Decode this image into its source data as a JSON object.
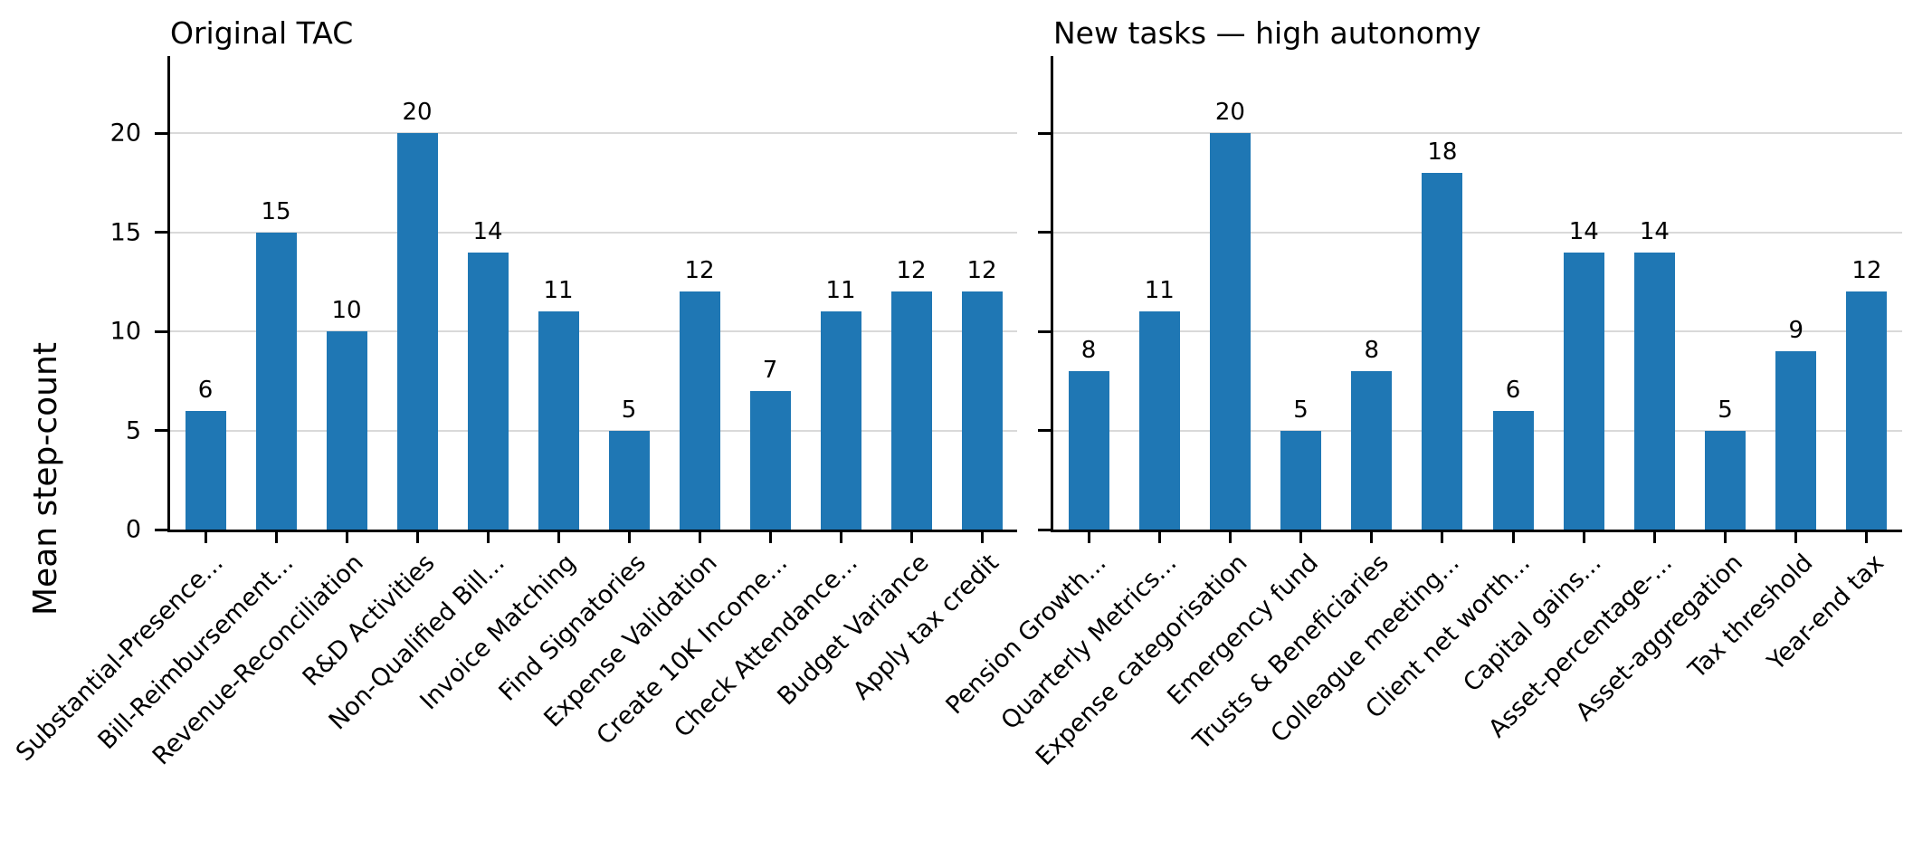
{
  "chart_data": [
    {
      "type": "bar",
      "title": "Original TAC",
      "categories": [
        "Substantial-Presence...",
        "Bill-Reimbursement...",
        "Revenue-Reconciliation",
        "R&D Activities",
        "Non-Qualified Bill...",
        "Invoice Matching",
        "Find Signatories",
        "Expense Validation",
        "Create 10K Income...",
        "Check Attendance...",
        "Budget Variance",
        "Apply tax credit"
      ],
      "values": [
        6,
        15,
        10,
        20,
        14,
        11,
        5,
        12,
        7,
        11,
        12,
        12
      ],
      "ylabel": "Mean step-count",
      "yticks": [
        0,
        5,
        10,
        15,
        20
      ],
      "ylim": [
        0,
        23.9
      ],
      "grid": true,
      "legend": "none",
      "bar_labels": true,
      "xtick_rotation": 45
    },
    {
      "type": "bar",
      "title": "New tasks — high autonomy",
      "categories": [
        "Pension Growth...",
        "Quarterly Metrics...",
        "Expense categorisation",
        "Emergency fund",
        "Trusts & Beneficiaries",
        "Colleague meeting...",
        "Client net worth...",
        "Capital gains...",
        "Asset-percentage-...",
        "Asset-aggregation",
        "Tax threshold",
        "Year-end tax"
      ],
      "values": [
        8,
        11,
        20,
        5,
        8,
        18,
        6,
        14,
        14,
        5,
        9,
        12
      ],
      "ylabel": "",
      "yticks": [
        0,
        5,
        10,
        15,
        20
      ],
      "ylim": [
        0,
        23.9
      ],
      "grid": true,
      "legend": "none",
      "bar_labels": true,
      "xtick_rotation": 45
    }
  ],
  "style": {
    "bar_color": "#1f77b4",
    "grid_color": "#d9d9d9",
    "axis_color": "#000000",
    "text_color": "#000000",
    "background": "#ffffff"
  }
}
